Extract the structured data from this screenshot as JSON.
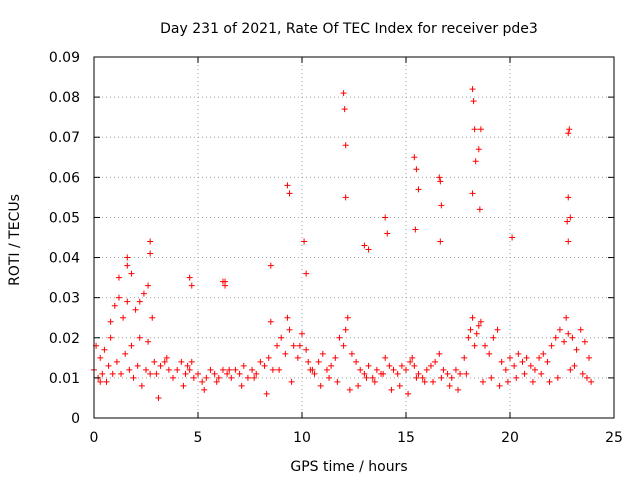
{
  "chart_data": {
    "type": "scatter",
    "title": "Day 231 of 2021, Rate Of TEC Index for receiver pde3",
    "xlabel": "GPS time / hours",
    "ylabel": "ROTI / TECUs",
    "xlim": [
      0,
      25
    ],
    "ylim": [
      0,
      0.09
    ],
    "xticks": [
      "0",
      "5",
      "10",
      "15",
      "20",
      "25"
    ],
    "yticks": [
      "0",
      "0.01",
      "0.02",
      "0.03",
      "0.04",
      "0.05",
      "0.06",
      "0.07",
      "0.08",
      "0.09"
    ],
    "grid": true,
    "marker": "+",
    "color": "#ff0000",
    "series": [
      {
        "x": [
          0.0,
          0.1,
          0.2,
          0.3,
          0.4,
          0.5,
          0.6,
          0.7,
          0.8,
          0.9,
          1.0,
          1.1,
          1.2,
          1.3,
          1.4,
          1.5,
          1.6,
          1.7,
          1.8,
          1.9,
          2.0,
          2.1,
          2.2,
          2.3,
          2.4,
          2.5,
          2.6,
          2.7,
          2.8,
          2.9,
          3.0,
          3.2,
          3.4,
          3.6,
          3.8,
          4.0,
          4.2,
          4.4,
          4.5,
          4.6,
          4.8,
          5.0,
          5.2,
          5.4,
          5.6,
          5.8,
          6.0,
          6.2,
          6.3,
          6.4,
          6.6,
          6.8,
          7.0,
          7.2,
          7.4,
          7.6,
          7.8,
          8.0,
          8.2,
          8.4,
          8.5,
          8.6,
          8.8,
          9.0,
          9.2,
          9.3,
          9.4,
          9.6,
          9.8,
          10.0,
          10.2,
          10.4,
          10.6,
          10.8,
          11.0,
          11.2,
          11.4,
          11.6,
          11.8,
          12.0,
          12.1,
          12.2,
          12.4,
          12.6,
          12.8,
          13.0,
          13.2,
          13.4,
          13.6,
          13.8,
          14.0,
          14.2,
          14.4,
          14.6,
          14.8,
          15.0,
          15.2,
          15.3,
          15.4,
          15.6,
          15.8,
          16.0,
          16.2,
          16.4,
          16.6,
          16.8,
          17.0,
          17.2,
          17.4,
          17.6,
          17.8,
          18.0,
          18.1,
          18.2,
          18.3,
          18.4,
          18.5,
          18.6,
          18.8,
          19.0,
          19.2,
          19.4,
          19.6,
          19.8,
          20.0,
          20.2,
          20.4,
          20.6,
          20.8,
          21.0,
          21.2,
          21.4,
          21.6,
          21.8,
          22.0,
          22.2,
          22.4,
          22.6,
          22.7,
          22.8,
          23.0,
          23.2,
          23.4,
          23.6,
          23.8,
          0.3,
          0.8,
          1.2,
          1.6,
          2.2,
          2.6,
          3.1,
          3.5,
          4.3,
          4.7,
          5.3,
          5.9,
          6.5,
          7.1,
          7.7,
          8.3,
          8.9,
          9.5,
          9.9,
          10.3,
          10.5,
          10.9,
          11.3,
          11.7,
          12.3,
          12.7,
          13.1,
          13.5,
          13.9,
          14.3,
          14.7,
          15.1,
          15.5,
          15.9,
          16.3,
          16.7,
          17.1,
          17.5,
          17.9,
          18.7,
          19.1,
          19.5,
          19.9,
          20.3,
          20.7,
          21.1,
          21.5,
          21.9,
          22.3,
          22.9,
          23.1,
          23.5,
          23.7,
          23.9,
          9.3,
          9.4,
          12.0,
          12.05,
          12.1,
          12.1,
          13.0,
          13.2,
          14.0,
          14.1,
          15.4,
          15.5,
          15.6,
          15.45,
          16.6,
          16.65,
          16.7,
          16.65,
          18.2,
          18.25,
          18.3,
          18.35,
          18.5,
          18.55,
          18.6,
          18.2,
          22.8,
          22.85,
          22.8,
          22.9,
          22.8,
          22.75,
          20.1,
          2.7,
          2.7,
          1.6,
          1.8,
          6.2,
          6.3,
          4.6,
          4.7,
          8.5,
          10.1,
          10.2
        ],
        "y": [
          0.012,
          0.018,
          0.01,
          0.015,
          0.011,
          0.017,
          0.009,
          0.013,
          0.02,
          0.011,
          0.028,
          0.014,
          0.03,
          0.011,
          0.025,
          0.016,
          0.029,
          0.012,
          0.018,
          0.01,
          0.027,
          0.013,
          0.02,
          0.008,
          0.031,
          0.012,
          0.019,
          0.011,
          0.025,
          0.014,
          0.011,
          0.013,
          0.014,
          0.012,
          0.01,
          0.012,
          0.014,
          0.011,
          0.013,
          0.012,
          0.01,
          0.011,
          0.009,
          0.01,
          0.012,
          0.011,
          0.01,
          0.012,
          0.034,
          0.011,
          0.01,
          0.012,
          0.011,
          0.013,
          0.01,
          0.012,
          0.011,
          0.014,
          0.013,
          0.015,
          0.024,
          0.012,
          0.018,
          0.02,
          0.016,
          0.025,
          0.022,
          0.018,
          0.015,
          0.021,
          0.017,
          0.012,
          0.011,
          0.014,
          0.016,
          0.012,
          0.013,
          0.015,
          0.02,
          0.018,
          0.022,
          0.025,
          0.016,
          0.014,
          0.012,
          0.011,
          0.013,
          0.01,
          0.012,
          0.011,
          0.015,
          0.013,
          0.012,
          0.011,
          0.013,
          0.012,
          0.014,
          0.015,
          0.013,
          0.011,
          0.01,
          0.012,
          0.013,
          0.014,
          0.016,
          0.012,
          0.011,
          0.01,
          0.012,
          0.011,
          0.015,
          0.02,
          0.022,
          0.025,
          0.018,
          0.021,
          0.023,
          0.024,
          0.018,
          0.016,
          0.02,
          0.022,
          0.014,
          0.012,
          0.015,
          0.013,
          0.016,
          0.014,
          0.015,
          0.013,
          0.012,
          0.015,
          0.016,
          0.014,
          0.018,
          0.02,
          0.022,
          0.019,
          0.025,
          0.021,
          0.02,
          0.017,
          0.022,
          0.019,
          0.015,
          0.009,
          0.024,
          0.035,
          0.038,
          0.029,
          0.033,
          0.005,
          0.015,
          0.008,
          0.014,
          0.007,
          0.009,
          0.012,
          0.008,
          0.01,
          0.006,
          0.012,
          0.009,
          0.018,
          0.014,
          0.012,
          0.008,
          0.01,
          0.009,
          0.007,
          0.008,
          0.01,
          0.009,
          0.011,
          0.007,
          0.008,
          0.006,
          0.01,
          0.009,
          0.009,
          0.01,
          0.008,
          0.007,
          0.011,
          0.009,
          0.01,
          0.008,
          0.009,
          0.01,
          0.011,
          0.009,
          0.011,
          0.009,
          0.01,
          0.012,
          0.013,
          0.011,
          0.01,
          0.009,
          0.058,
          0.056,
          0.081,
          0.077,
          0.068,
          0.055,
          0.043,
          0.042,
          0.05,
          0.046,
          0.065,
          0.062,
          0.057,
          0.047,
          0.06,
          0.059,
          0.053,
          0.044,
          0.082,
          0.079,
          0.072,
          0.064,
          0.067,
          0.052,
          0.072,
          0.056,
          0.071,
          0.072,
          0.055,
          0.05,
          0.044,
          0.049,
          0.045,
          0.044,
          0.041,
          0.04,
          0.036,
          0.034,
          0.033,
          0.035,
          0.033,
          0.038,
          0.044,
          0.036
        ]
      }
    ]
  }
}
